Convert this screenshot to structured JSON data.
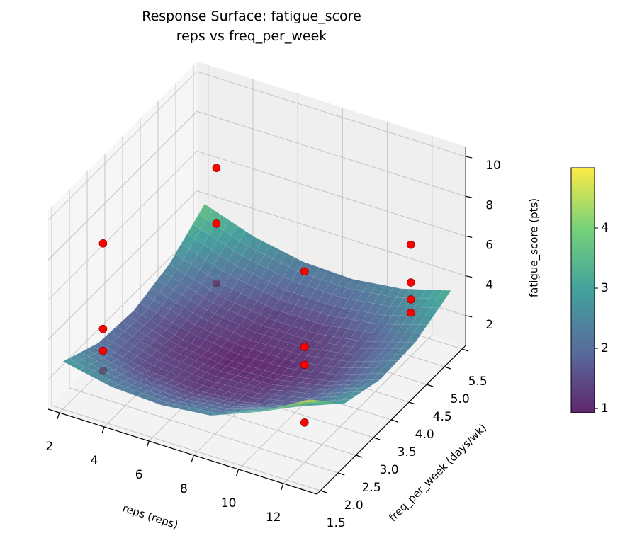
{
  "chart_data": {
    "type": "surface",
    "title": "Response Surface: fatigue_score",
    "subtitle": "reps vs freq_per_week",
    "xlabel": "reps (reps)",
    "ylabel": "freq_per_week (days/wk)",
    "zlabel": "fatigue_score (pts)",
    "xlim": [
      1.5,
      13.5
    ],
    "ylim": [
      1.4,
      5.6
    ],
    "zlim": [
      0.5,
      10.5
    ],
    "x_ticks": [
      "2",
      "4",
      "6",
      "8",
      "10",
      "12"
    ],
    "y_ticks": [
      "1.5",
      "2.0",
      "2.5",
      "3.0",
      "3.5",
      "4.0",
      "4.5",
      "5.0",
      "5.5"
    ],
    "z_ticks": [
      "2",
      "4",
      "6",
      "8",
      "10"
    ],
    "grid": true,
    "surface": {
      "colormap": "viridis",
      "reps": [
        2,
        4.2,
        6.4,
        8.6,
        10.8,
        13
      ],
      "freq": [
        1.5,
        2.5,
        3.5,
        4.5,
        5.5
      ],
      "z": [
        [
          2.9,
          2.05,
          1.9,
          2.45,
          3.7
        ],
        [
          2.39,
          1.45,
          1.21,
          1.68,
          2.84
        ],
        [
          2.27,
          1.24,
          0.91,
          1.29,
          2.36
        ],
        [
          2.53,
          1.42,
          1.0,
          1.29,
          2.27
        ],
        [
          3.5,
          1.98,
          1.48,
          1.68,
          2.57
        ],
        [
          4.9,
          2.93,
          2.34,
          2.45,
          3.26
        ]
      ]
    },
    "colorbar": {
      "clim": [
        0.93,
        5.0
      ],
      "ticks": [
        "1",
        "2",
        "3",
        "4"
      ],
      "position": "right"
    },
    "points": {
      "color": "#ff0000",
      "data": [
        {
          "reps": 3,
          "freq": 2,
          "z": 8.3
        },
        {
          "reps": 3,
          "freq": 2,
          "z": 4.0
        },
        {
          "reps": 3,
          "freq": 2,
          "z": 2.9
        },
        {
          "reps": 3,
          "freq": 2,
          "z": 1.9
        },
        {
          "reps": 3,
          "freq": 5.2,
          "z": 6.4
        },
        {
          "reps": 3,
          "freq": 5.2,
          "z": 3.6
        },
        {
          "reps": 3,
          "freq": 5.2,
          "z": 0.6
        },
        {
          "reps": 12,
          "freq": 2,
          "z": 10.1
        },
        {
          "reps": 12,
          "freq": 2,
          "z": 6.3
        },
        {
          "reps": 12,
          "freq": 2,
          "z": 5.4
        },
        {
          "reps": 12,
          "freq": 2,
          "z": 2.5
        },
        {
          "reps": 12,
          "freq": 5,
          "z": 6.1
        },
        {
          "reps": 12,
          "freq": 5,
          "z": 4.2
        },
        {
          "reps": 12,
          "freq": 5,
          "z": 3.35
        },
        {
          "reps": 12,
          "freq": 5,
          "z": 2.67
        }
      ]
    }
  }
}
